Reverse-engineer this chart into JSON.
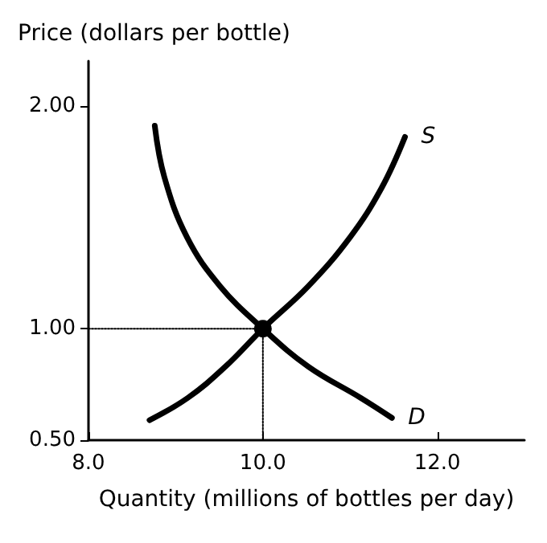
{
  "chart_data": {
    "type": "line",
    "xlabel": "Quantity (millions of bottles per day)",
    "ylabel": "Price (dollars per bottle)",
    "xlim": [
      8,
      13
    ],
    "ylim": [
      0.5,
      2.2
    ],
    "xticks": [
      {
        "value": 8,
        "label": "8.0"
      },
      {
        "value": 10,
        "label": "10.0"
      },
      {
        "value": 12,
        "label": "12.0"
      }
    ],
    "yticks": [
      {
        "value": 0.5,
        "label": "0.50"
      },
      {
        "value": 1,
        "label": "1.00"
      },
      {
        "value": 2,
        "label": "2.00"
      }
    ],
    "series": [
      {
        "line_style": "dotted",
        "marker": "none",
        "color": "#000000",
        "x": [
          8,
          10,
          10
        ],
        "values": [
          1,
          1,
          0.5
        ]
      },
      {
        "name": "D",
        "marker": "none",
        "color": "#000000",
        "x": [
          8.76,
          8.87,
          9.13,
          9.51,
          10,
          10.52,
          11.12,
          11.48
        ],
        "values": [
          1.91,
          1.68,
          1.41,
          1.19,
          1,
          0.83,
          0.69,
          0.6
        ]
      },
      {
        "name": "S",
        "marker": "none",
        "color": "#000000",
        "x": [
          8.7,
          9.14,
          9.57,
          10,
          10.52,
          11,
          11.36,
          11.63
        ],
        "values": [
          0.59,
          0.69,
          0.83,
          1,
          1.19,
          1.41,
          1.63,
          1.86
        ]
      },
      {
        "type": "scatter",
        "marker": "circle",
        "color": "#000000",
        "x": [
          10
        ],
        "values": [
          1
        ]
      }
    ]
  }
}
